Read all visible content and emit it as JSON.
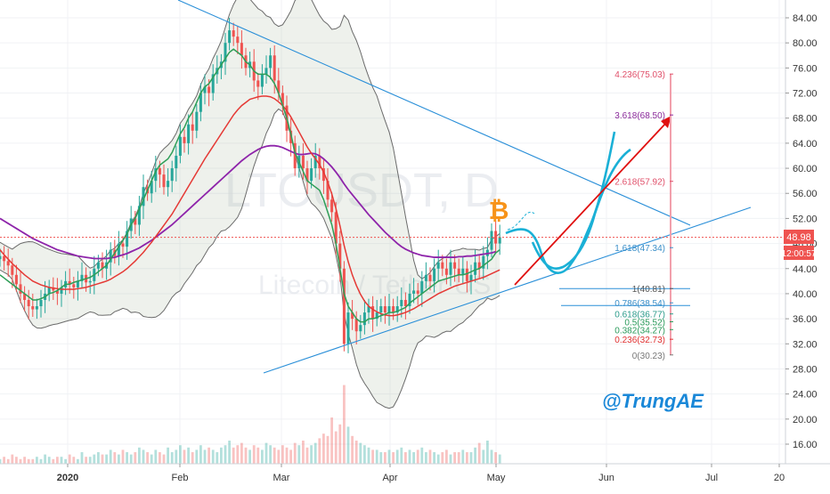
{
  "watermark": {
    "symbol": "LTCUSDT, D",
    "name": "Litecoin / Tether US"
  },
  "signature": "@TrungAE",
  "price_label": "48.98",
  "timer_label": "12:00:57",
  "fib_labels": [
    {
      "text": "4.236(75.03)",
      "value": 75.03,
      "color": "#e0506a"
    },
    {
      "text": "3.618(68.50)",
      "value": 68.5,
      "color": "#8a2a9a"
    },
    {
      "text": "2.618(57.92)",
      "value": 57.92,
      "color": "#e0506a"
    },
    {
      "text": "1.618(47.34)",
      "value": 47.34,
      "color": "#3a8ec8"
    },
    {
      "text": "1(40.81)",
      "value": 40.81,
      "color": "#555555"
    },
    {
      "text": "0.786(38.54)",
      "value": 38.54,
      "color": "#3a8ec8"
    },
    {
      "text": "0.618(36.77)",
      "value": 36.77,
      "color": "#2a9a8a"
    },
    {
      "text": "0.5(35.52)",
      "value": 35.52,
      "color": "#2a9a5a"
    },
    {
      "text": "0.382(34.27)",
      "value": 34.27,
      "color": "#2a9a5a"
    },
    {
      "text": "0.236(32.73)",
      "value": 32.73,
      "color": "#e03030"
    },
    {
      "text": "0(30.23)",
      "value": 30.23,
      "color": "#777777"
    }
  ],
  "chart_data": {
    "type": "line",
    "symbol": "LTCUSDT",
    "interval": "D",
    "x_tick_labels": [
      "2020",
      "Feb",
      "Mar",
      "Apr",
      "May",
      "Jun",
      "Jul",
      "20"
    ],
    "y_tick_labels": [
      "84.00",
      "80.00",
      "76.00",
      "72.00",
      "68.00",
      "64.00",
      "60.00",
      "56.00",
      "52.00",
      "48.00",
      "44.00",
      "40.00",
      "36.00",
      "32.00",
      "28.00",
      "24.00",
      "20.00",
      "16.00"
    ],
    "ylim": [
      13,
      86
    ],
    "current_price": 48.98,
    "colors": {
      "up": "#26a69a",
      "down": "#ef5350",
      "ma_short": "#2e9e57",
      "ma_mid": "#e53935",
      "ma_long": "#8e24aa",
      "trend": "#2a8fd8",
      "projection": "#1ab0d6",
      "target_arrow": "#e01010"
    },
    "series": [
      {
        "values": [
          46,
          45.2,
          44.5,
          43,
          41.5,
          40,
          39,
          38,
          37.5,
          38,
          39,
          40,
          41,
          40.5,
          40,
          41,
          42,
          41.5,
          41,
          42,
          43,
          41.8,
          42,
          44,
          45,
          44,
          45,
          47,
          46,
          48,
          47.5,
          50,
          52,
          51,
          54,
          57,
          56,
          58,
          60,
          59,
          57,
          58,
          60,
          62,
          65,
          64,
          67,
          66,
          69,
          72,
          73,
          72,
          75,
          76,
          77,
          80,
          82,
          81,
          80,
          78,
          76,
          77,
          74,
          73,
          75,
          76,
          78,
          74,
          72,
          70,
          66,
          64,
          60,
          62,
          60,
          58,
          60,
          62,
          60,
          58,
          55,
          53,
          48,
          44,
          32,
          37,
          36,
          34,
          35,
          37,
          38,
          36,
          37,
          38,
          37,
          38,
          37,
          38,
          39,
          38,
          40,
          40.5,
          40,
          42,
          43,
          42,
          44,
          45,
          44,
          43,
          45,
          44,
          43,
          44,
          42,
          43,
          45,
          44,
          46,
          47,
          50,
          48,
          49
        ]
      },
      {
        "name": "",
        "values": [
          43,
          42.5,
          42,
          41.5,
          41,
          40.5,
          40,
          39.5,
          39,
          39,
          39.2,
          39.5,
          40,
          40.2,
          40.5,
          41,
          41.5,
          41.5,
          41.8,
          42,
          42.2,
          42.4,
          42.6,
          43,
          43.5,
          44,
          44.5,
          45.5,
          46.5,
          47.5,
          48.5,
          49.5,
          51,
          52,
          53.5,
          55,
          56.5,
          58,
          59.5,
          60.5,
          61,
          61.5,
          62.5,
          64,
          65.5,
          66.5,
          68,
          69,
          70.5,
          72,
          73,
          73.5,
          74.5,
          75.5,
          76.5,
          77.5,
          78.5,
          79,
          78.5,
          78,
          77,
          76.5,
          75.5,
          75,
          75,
          75,
          74.5,
          73.5,
          72,
          70,
          68,
          65.5,
          62.5,
          61,
          59.5,
          58,
          57.5,
          57,
          56.5,
          55,
          53,
          51,
          48,
          44,
          40,
          38,
          37,
          36,
          35.5,
          35.5,
          36,
          36,
          36.2,
          36.5,
          36.7,
          37,
          37,
          37.2,
          37.5,
          37.8,
          38.5,
          39,
          39.5,
          40,
          40.5,
          41,
          41.5,
          42,
          42.2,
          42.4,
          42.6,
          42.8,
          43,
          43,
          43.2,
          43.5,
          43.8,
          44,
          44.5,
          45,
          45.5,
          46.5,
          47
        ]
      },
      {
        "name": "",
        "values": [
          47,
          46.2,
          45.5,
          44.8,
          44.2,
          43.6,
          43,
          42.5,
          42,
          41.7,
          41.4,
          41.2,
          41,
          40.9,
          40.8,
          40.7,
          40.7,
          40.7,
          40.7,
          40.8,
          40.9,
          41,
          41.2,
          41.4,
          41.6,
          41.8,
          42,
          42.3,
          42.7,
          43.1,
          43.5,
          44,
          44.6,
          45.2,
          45.9,
          46.6,
          47.4,
          48.2,
          49.1,
          50,
          50.9,
          51.8,
          52.7,
          53.8,
          54.9,
          56,
          57.1,
          58.2,
          59.3,
          60.4,
          61.5,
          62.5,
          63.5,
          64.5,
          65.5,
          66.5,
          67.5,
          68.5,
          69.3,
          70,
          70.5,
          71,
          71.2,
          71.4,
          71.5,
          71.5,
          71.4,
          71.1,
          70.6,
          70,
          69.2,
          68.2,
          67,
          65.8,
          64.6,
          63.4,
          62.4,
          61.5,
          60.6,
          59.4,
          57.8,
          55.9,
          53.6,
          50.8,
          47.7,
          45.1,
          43,
          41.3,
          39.9,
          38.8,
          38,
          37.5,
          37.1,
          36.8,
          36.6,
          36.5,
          36.5,
          36.6,
          36.8,
          37,
          37.3,
          37.6,
          38,
          38.4,
          38.8,
          39.2,
          39.6,
          40,
          40.3,
          40.6,
          40.9,
          41.2,
          41.4,
          41.6,
          41.8,
          42,
          42.2,
          42.4,
          42.6,
          42.9,
          43.2,
          43.5,
          43.8
        ]
      },
      {
        "name": "",
        "values": [
          52,
          51.6,
          51.2,
          50.8,
          50.4,
          50,
          49.6,
          49.2,
          48.8,
          48.5,
          48.2,
          47.9,
          47.6,
          47.3,
          47,
          46.8,
          46.6,
          46.4,
          46.2,
          46,
          45.9,
          45.8,
          45.7,
          45.6,
          45.6,
          45.6,
          45.6,
          45.7,
          45.8,
          46,
          46.2,
          46.4,
          46.7,
          47,
          47.3,
          47.7,
          48.1,
          48.5,
          49,
          49.5,
          50,
          50.5,
          51,
          51.6,
          52.2,
          52.8,
          53.4,
          54,
          54.6,
          55.2,
          55.8,
          56.4,
          57,
          57.6,
          58.2,
          58.8,
          59.4,
          60,
          60.6,
          61.2,
          61.7,
          62.2,
          62.6,
          63,
          63.3,
          63.5,
          63.6,
          63.6,
          63.5,
          63.3,
          63,
          62.7,
          62.4,
          62.2,
          62.2,
          62.3,
          62.4,
          62.3,
          62,
          61.5,
          60.9,
          60.2,
          59.4,
          58.5,
          57.5,
          56.6,
          55.8,
          55,
          54.2,
          53.4,
          52.6,
          51.9,
          51.2,
          50.5,
          49.8,
          49.2,
          48.6,
          48,
          47.5,
          47.1,
          46.8,
          46.5,
          46.3,
          46.1,
          46,
          45.9,
          45.8,
          45.8,
          45.8,
          45.8,
          45.8,
          45.8,
          45.9,
          45.9,
          46,
          46,
          46.1,
          46.2,
          46.3,
          46.4,
          46.5,
          46.7
        ]
      }
    ],
    "volume": [
      2,
      3,
      2,
      4,
      3,
      2,
      3,
      2,
      2,
      3,
      2,
      4,
      3,
      2,
      3,
      3,
      2,
      4,
      3,
      2,
      5,
      3,
      3,
      4,
      5,
      4,
      4,
      6,
      5,
      4,
      6,
      5,
      4,
      5,
      7,
      6,
      5,
      4,
      6,
      5,
      4,
      7,
      5,
      6,
      8,
      6,
      7,
      5,
      6,
      8,
      6,
      7,
      6,
      5,
      7,
      8,
      10,
      7,
      8,
      9,
      7,
      6,
      8,
      7,
      6,
      9,
      8,
      7,
      6,
      8,
      7,
      6,
      9,
      8,
      10,
      7,
      8,
      9,
      11,
      13,
      12,
      20,
      14,
      17,
      34,
      16,
      12,
      10,
      9,
      8,
      7,
      6,
      6,
      5,
      5,
      6,
      5,
      6,
      7,
      5,
      6,
      5,
      6,
      7,
      5,
      6,
      5,
      4,
      5,
      6,
      4,
      5,
      5,
      6,
      5,
      5,
      7,
      9,
      6,
      10,
      6,
      5,
      4
    ]
  }
}
